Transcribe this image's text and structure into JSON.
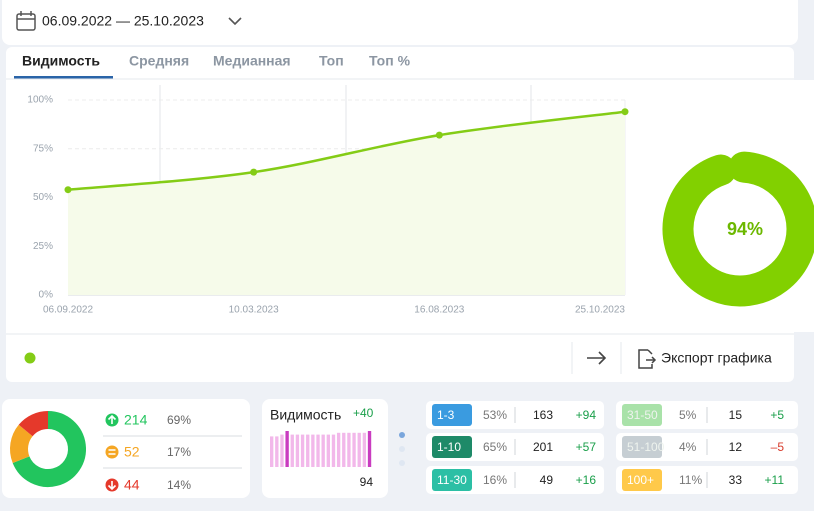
{
  "date_range": "06.09.2022 — 25.10.2023",
  "tabs": [
    "Видимость",
    "Средняя",
    "Медианная",
    "Топ",
    "Топ %"
  ],
  "export_label": "Экспорт графика",
  "chart_data": [
    {
      "type": "line",
      "x": [
        "06.09.2022",
        "10.03.2023",
        "16.08.2023",
        "25.10.2023"
      ],
      "values": [
        54,
        63,
        82,
        94
      ],
      "color": "#84cc16",
      "ylim": [
        0,
        100
      ],
      "yticks": [
        {
          "value": 0,
          "label": "0%"
        },
        {
          "value": 25,
          "label": "25%"
        },
        {
          "value": 50,
          "label": "50%"
        },
        {
          "value": 75,
          "label": "75%"
        },
        {
          "value": 100,
          "label": "100%"
        }
      ],
      "grid": true
    },
    {
      "type": "donut",
      "values": [
        94
      ],
      "value_labels": [
        "94%"
      ],
      "color": "#82d000"
    },
    {
      "type": "pie",
      "values": [
        69,
        17,
        14
      ],
      "value_labels": [
        "69%",
        "17%",
        "14%"
      ],
      "counts": [
        214,
        52,
        44
      ],
      "colors": [
        "#22c55e",
        "#f5a623",
        "#e5392b"
      ]
    },
    {
      "type": "bar",
      "title": "Видимость",
      "change": "+40",
      "total": 94,
      "values": [
        85,
        85,
        90,
        100,
        90,
        90,
        90,
        90,
        90,
        90,
        90,
        90,
        90,
        95,
        95,
        95,
        95,
        95,
        95,
        100
      ],
      "color": "#f2b8ea",
      "highlight_color": "#c93cc0",
      "highlight": [
        3,
        19
      ]
    }
  ],
  "positions": [
    [
      {
        "range": "1-3",
        "color": "#3a9be0",
        "percent": "53%",
        "count": 163,
        "change": "+94"
      },
      {
        "range": "1-10",
        "color": "#1e8a68",
        "percent": "65%",
        "count": 201,
        "change": "+57"
      },
      {
        "range": "11-30",
        "color": "#2cbfa5",
        "percent": "16%",
        "count": 49,
        "change": "+16"
      }
    ],
    [
      {
        "range": "31-50",
        "color": "#a9e2a9",
        "percent": "5%",
        "count": 15,
        "change": "+5"
      },
      {
        "range": "51-100",
        "color": "#c6ced3",
        "percent": "4%",
        "count": 12,
        "change": "–5"
      },
      {
        "range": "100+",
        "color": "#ffc94a",
        "percent": "11%",
        "count": 33,
        "change": "+11"
      }
    ]
  ]
}
